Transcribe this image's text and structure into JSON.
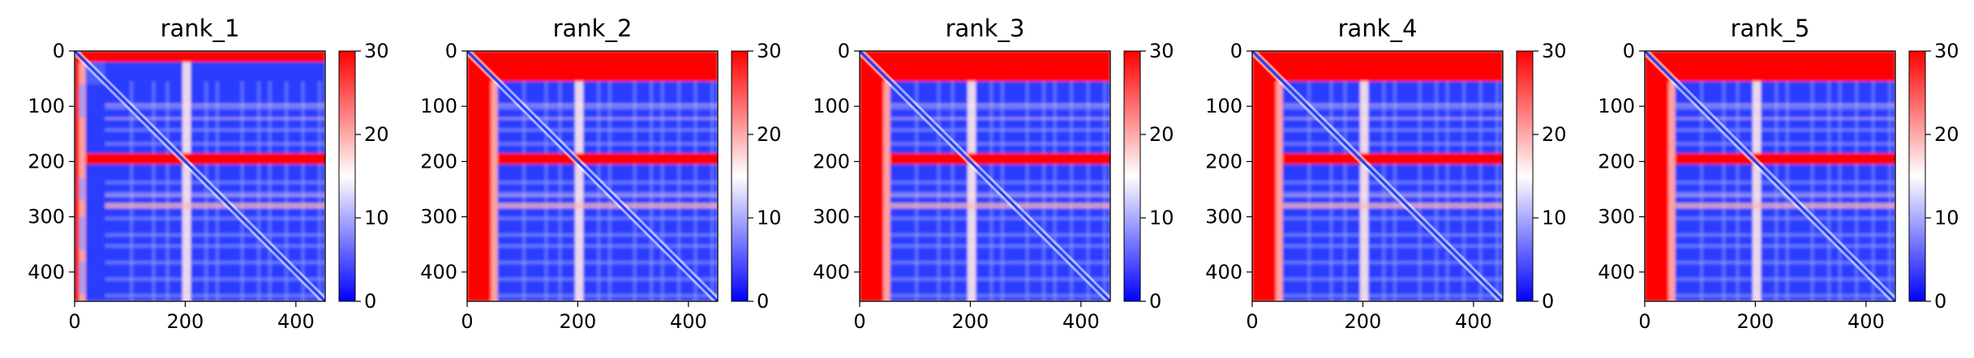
{
  "chart_data": [
    {
      "type": "heatmap",
      "title": "rank_1",
      "x_ticks": [
        0,
        200,
        400
      ],
      "y_ticks": [
        0,
        100,
        200,
        300,
        400
      ],
      "xlim": [
        0,
        453
      ],
      "ylim": [
        453,
        0
      ],
      "colorbar": {
        "cmap": "bwr",
        "range": [
          0,
          30
        ],
        "ticks": [
          0,
          10,
          20,
          30
        ]
      },
      "regions": {
        "red_top_band_rows": [
          0,
          20
        ],
        "red_left_band_cols": [
          0,
          20
        ],
        "red_band_rows": [
          185,
          205
        ],
        "light_col": [
          195,
          210
        ],
        "light_row": [
          275,
          285
        ]
      }
    },
    {
      "type": "heatmap",
      "title": "rank_2",
      "x_ticks": [
        0,
        200,
        400
      ],
      "y_ticks": [
        0,
        100,
        200,
        300,
        400
      ],
      "xlim": [
        0,
        453
      ],
      "ylim": [
        453,
        0
      ],
      "colorbar": {
        "cmap": "bwr",
        "range": [
          0,
          30
        ],
        "ticks": [
          0,
          10,
          20,
          30
        ]
      },
      "regions": {
        "red_top_band_rows": [
          0,
          55
        ],
        "red_left_band_cols": [
          0,
          55
        ],
        "red_band_rows": [
          185,
          205
        ],
        "light_col": [
          195,
          210
        ],
        "light_row": [
          275,
          285
        ]
      }
    },
    {
      "type": "heatmap",
      "title": "rank_3",
      "x_ticks": [
        0,
        200,
        400
      ],
      "y_ticks": [
        0,
        100,
        200,
        300,
        400
      ],
      "xlim": [
        0,
        453
      ],
      "ylim": [
        453,
        0
      ],
      "colorbar": {
        "cmap": "bwr",
        "range": [
          0,
          30
        ],
        "ticks": [
          0,
          10,
          20,
          30
        ]
      },
      "regions": {
        "red_top_band_rows": [
          0,
          55
        ],
        "red_left_band_cols": [
          0,
          55
        ],
        "red_band_rows": [
          185,
          205
        ],
        "light_col": [
          195,
          210
        ],
        "light_row": [
          275,
          285
        ]
      }
    },
    {
      "type": "heatmap",
      "title": "rank_4",
      "x_ticks": [
        0,
        200,
        400
      ],
      "y_ticks": [
        0,
        100,
        200,
        300,
        400
      ],
      "xlim": [
        0,
        453
      ],
      "ylim": [
        453,
        0
      ],
      "colorbar": {
        "cmap": "bwr",
        "range": [
          0,
          30
        ],
        "ticks": [
          0,
          10,
          20,
          30
        ]
      },
      "regions": {
        "red_top_band_rows": [
          0,
          55
        ],
        "red_left_band_cols": [
          0,
          55
        ],
        "red_band_rows": [
          185,
          205
        ],
        "light_col": [
          195,
          210
        ],
        "light_row": [
          275,
          285
        ]
      }
    },
    {
      "type": "heatmap",
      "title": "rank_5",
      "x_ticks": [
        0,
        200,
        400
      ],
      "y_ticks": [
        0,
        100,
        200,
        300,
        400
      ],
      "xlim": [
        0,
        453
      ],
      "ylim": [
        453,
        0
      ],
      "colorbar": {
        "cmap": "bwr",
        "range": [
          0,
          30
        ],
        "ticks": [
          0,
          10,
          20,
          30
        ]
      },
      "regions": {
        "red_top_band_rows": [
          0,
          55
        ],
        "red_left_band_cols": [
          0,
          55
        ],
        "red_band_rows": [
          185,
          205
        ],
        "light_col": [
          195,
          210
        ],
        "light_row": [
          275,
          285
        ]
      }
    }
  ],
  "colors": {
    "low": "#0000ff",
    "mid": "#ffffff",
    "high": "#ff0000",
    "diagonal": "#1f3fff"
  }
}
